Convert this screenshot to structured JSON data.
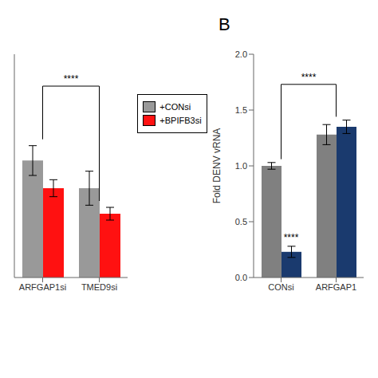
{
  "chart_data": [
    {
      "type": "bar",
      "categories": [
        "ARFGAP1si",
        "TMED9si"
      ],
      "series": [
        {
          "name": "+CONsi",
          "color": "#999999",
          "values": [
            0.55,
            0.42
          ],
          "errors": [
            0.07,
            0.08
          ]
        },
        {
          "name": "+BPIFB3si",
          "color": "#ff1111",
          "values": [
            0.42,
            0.3
          ],
          "errors": [
            0.04,
            0.03
          ]
        }
      ],
      "ylim": [
        0,
        1.05
      ],
      "tick_labels": "x",
      "grid": false,
      "legend": "right",
      "annotations": [
        {
          "text": "****",
          "from": "ARFGAP1si",
          "to": "TMED9si",
          "y": 0.9
        }
      ]
    },
    {
      "type": "bar",
      "title": "B",
      "categories": [
        "CONsi",
        "ARFGAP1"
      ],
      "series": [
        {
          "name": "+CONsi",
          "color": "#808080",
          "values": [
            1.0,
            1.28
          ],
          "errors": [
            0.03,
            0.09
          ]
        },
        {
          "name": "+BPIFB3si",
          "color": "#1a3a6e",
          "values": [
            0.23,
            1.35
          ],
          "errors": [
            0.05,
            0.06
          ]
        }
      ],
      "ylabel": "Fold DENV vRNA",
      "ylim": [
        0,
        2.0
      ],
      "yticks": [
        {
          "value": 0.0,
          "label": "0.0"
        },
        {
          "value": 0.5,
          "label": "0.5"
        },
        {
          "value": 1.0,
          "label": "1.0"
        },
        {
          "value": 1.5,
          "label": "1.5"
        },
        {
          "value": 2.0,
          "label": "2.0"
        }
      ],
      "grid": false,
      "annotations": [
        {
          "text": "****",
          "category": "CONsi",
          "series": "+BPIFB3si"
        },
        {
          "text": "****",
          "from": "CONsi",
          "to": "ARFGAP1",
          "y": 1.73
        }
      ]
    }
  ]
}
